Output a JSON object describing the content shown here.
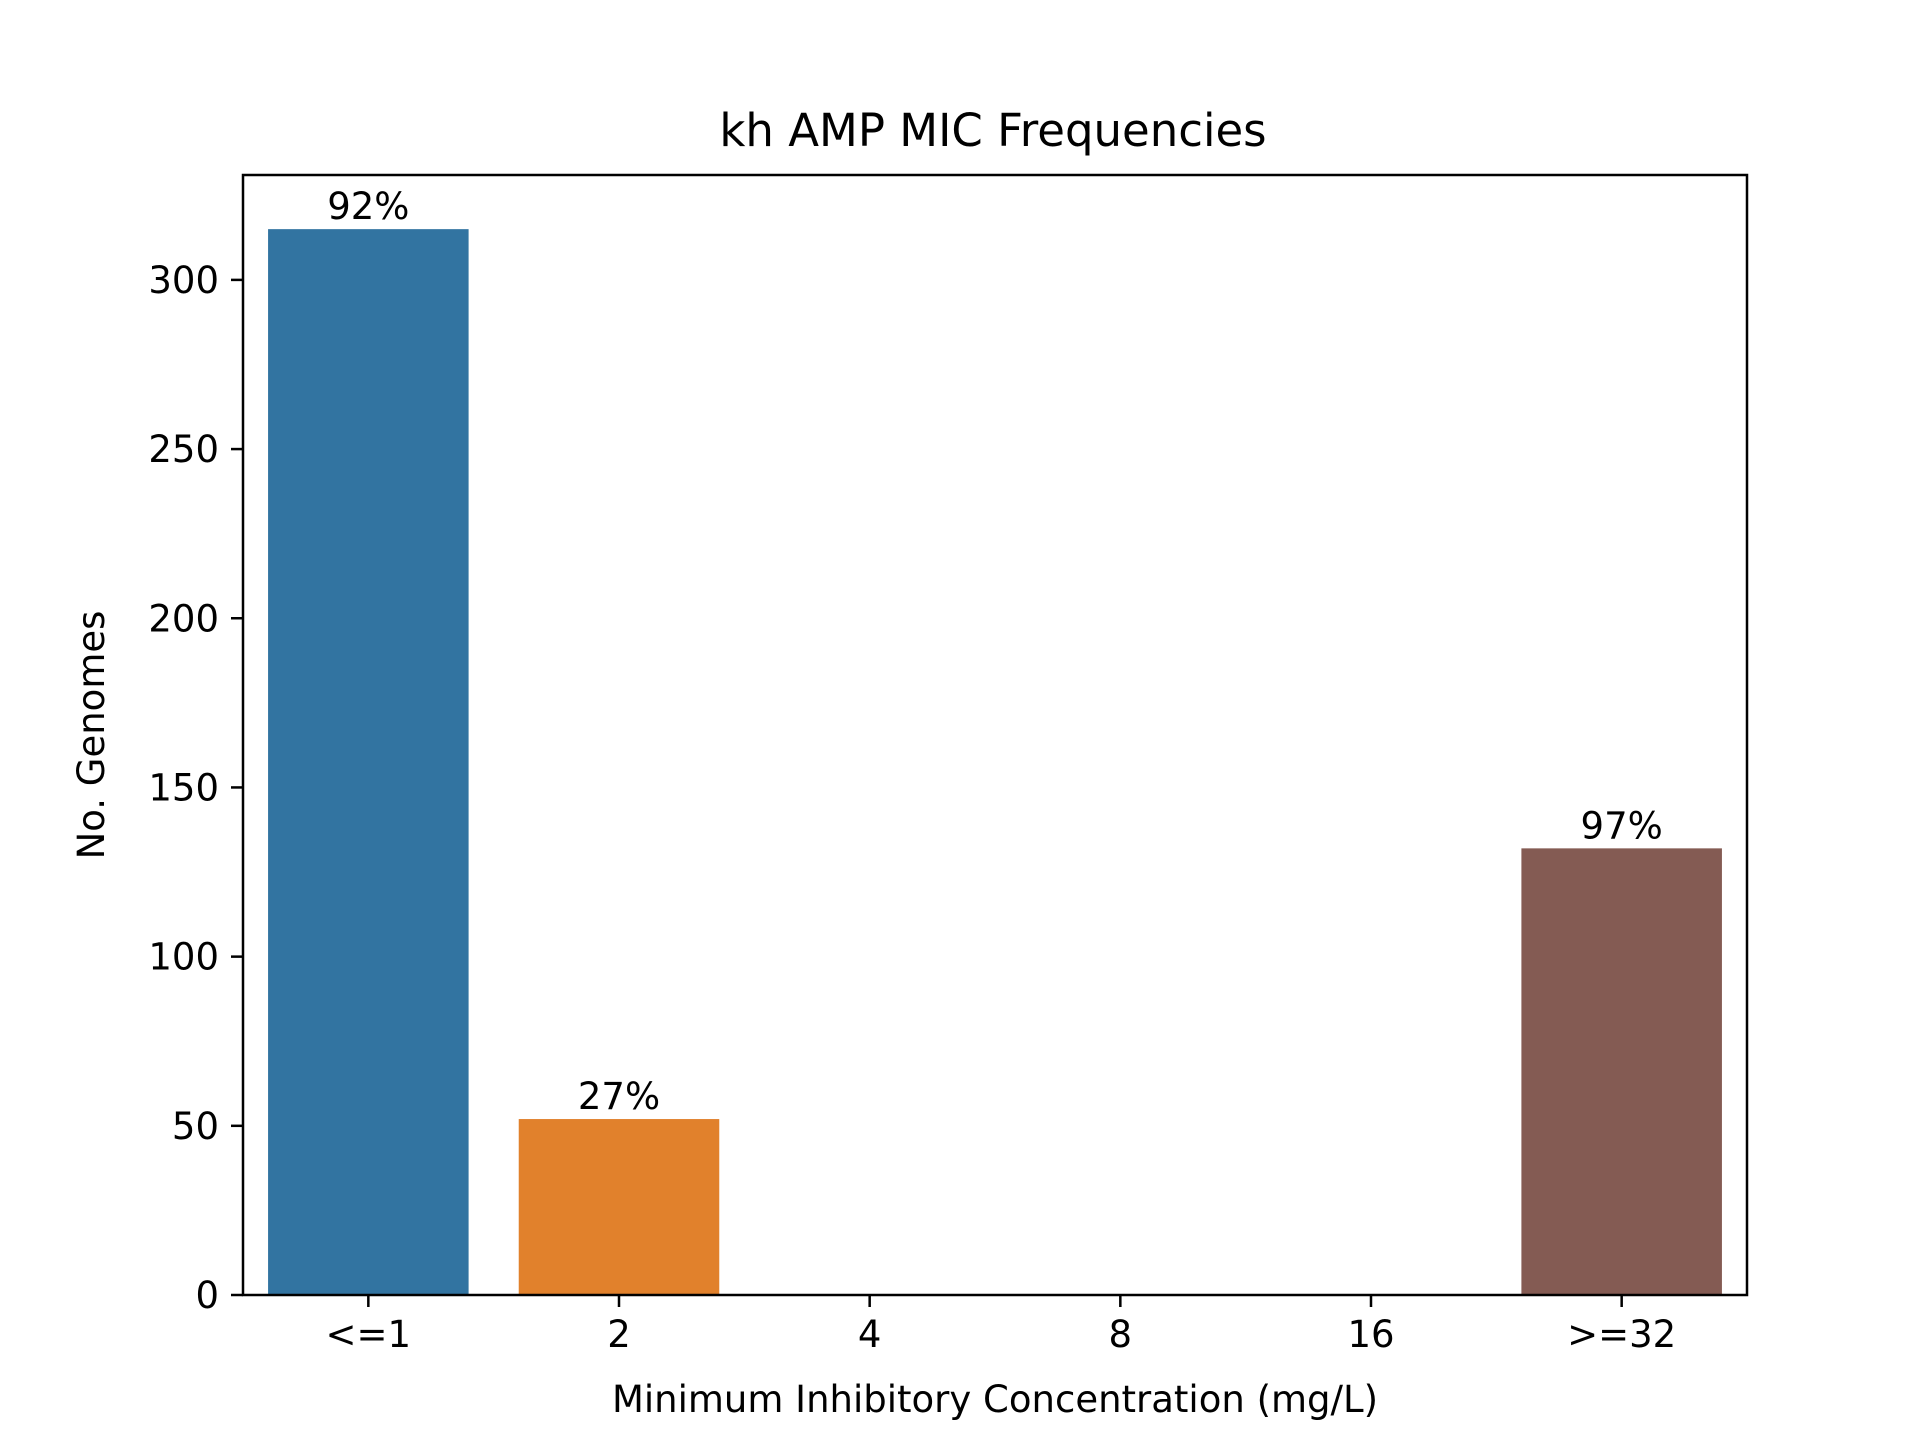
{
  "chart_data": {
    "type": "bar",
    "title": "kh AMP MIC Frequencies",
    "xlabel": "Minimum Inhibitory Concentration (mg/L)",
    "ylabel": "No. Genomes",
    "categories": [
      "<=1",
      "2",
      "4",
      "8",
      "16",
      ">=32"
    ],
    "values": [
      315,
      52,
      0,
      0,
      0,
      132
    ],
    "data_labels": [
      "92%",
      "27%",
      "",
      "",
      "",
      "97%"
    ],
    "colors": [
      "#3274a1",
      "#e1812c",
      "#3a923a",
      "#c03d3e",
      "#9372b2",
      "#845b53"
    ],
    "ylim": [
      0,
      331
    ],
    "yticks": [
      0,
      50,
      100,
      150,
      200,
      250,
      300
    ],
    "grid": false,
    "legend": "none"
  }
}
